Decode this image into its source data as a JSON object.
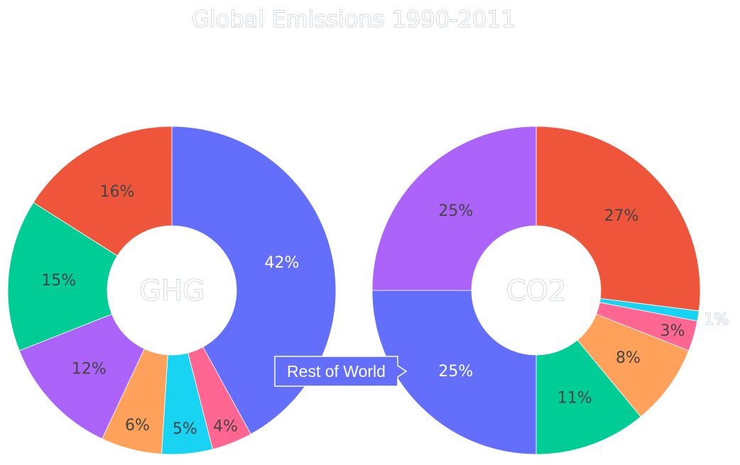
{
  "chart_data": {
    "type": "pie",
    "title": "Global Emissions 1990-2011",
    "charts": [
      {
        "center_label": "GHG",
        "slices": [
          {
            "value": 42,
            "label": "42%",
            "color": "#636efa"
          },
          {
            "value": 4,
            "label": "4%",
            "color": "#ff6692"
          },
          {
            "value": 5,
            "label": "5%",
            "color": "#19d3f3"
          },
          {
            "value": 6,
            "label": "6%",
            "color": "#ffa15a"
          },
          {
            "value": 12,
            "label": "12%",
            "color": "#ab63fa"
          },
          {
            "value": 15,
            "label": "15%",
            "color": "#00cc96"
          },
          {
            "value": 16,
            "label": "16%",
            "color": "#ef553b"
          }
        ]
      },
      {
        "center_label": "CO2",
        "slices": [
          {
            "value": 27,
            "label": "27%",
            "color": "#ef553b"
          },
          {
            "value": 1,
            "label": "1%",
            "color": "#19d3f3"
          },
          {
            "value": 3,
            "label": "3%",
            "color": "#ff6692"
          },
          {
            "value": 8,
            "label": "8%",
            "color": "#ffa15a"
          },
          {
            "value": 11,
            "label": "11%",
            "color": "#00cc96"
          },
          {
            "value": 25,
            "label": "25%",
            "color": "#636efa"
          },
          {
            "value": 25,
            "label": "25%",
            "color": "#ab63fa"
          }
        ]
      }
    ],
    "hover_label": "Rest of World",
    "hover_color": "#636efa"
  }
}
